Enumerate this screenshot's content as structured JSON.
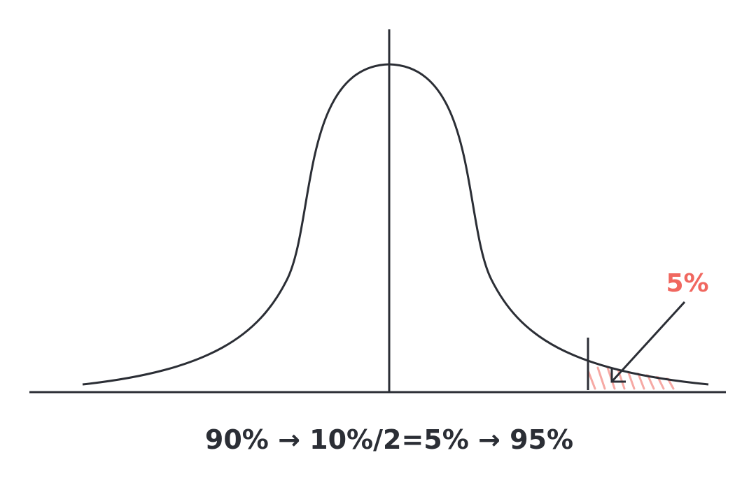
{
  "annotation": "5%",
  "caption": "90% → 10%/2=5% → 95%"
}
